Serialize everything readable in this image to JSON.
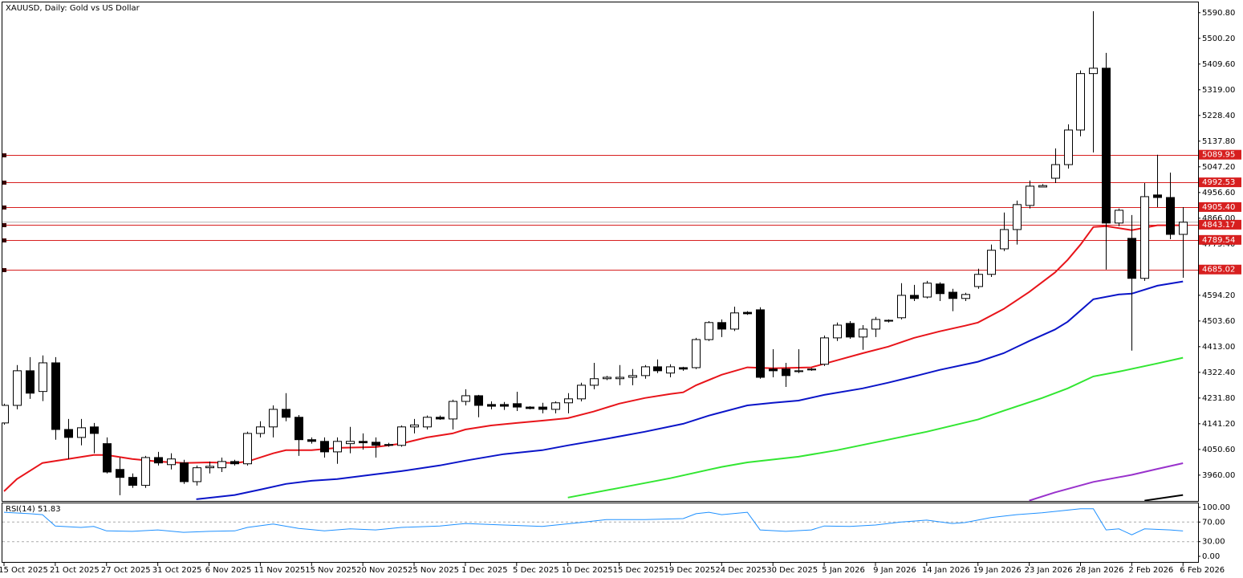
{
  "chart_data": [
    {
      "type": "candlestick",
      "title": "XAUUSD, Daily:  Gold vs US Dollar",
      "categories": [
        "15 Oct 2025",
        null,
        null,
        null,
        "21 Oct 2025",
        null,
        null,
        null,
        "27 Oct 2025",
        null,
        null,
        null,
        "31 Oct 2025",
        null,
        null,
        null,
        "6 Nov 2025",
        null,
        null,
        null,
        "11 Nov 2025",
        null,
        null,
        null,
        "15 Nov 2025",
        null,
        null,
        null,
        "20 Nov 2025",
        null,
        null,
        null,
        "25 Nov 2025",
        null,
        null,
        null,
        "1 Dec 2025",
        null,
        null,
        null,
        "5 Dec 2025",
        null,
        null,
        null,
        "10 Dec 2025",
        null,
        null,
        null,
        "15 Dec 2025",
        null,
        null,
        null,
        "19 Dec 2025",
        null,
        null,
        null,
        "24 Dec 2025",
        null,
        null,
        null,
        "30 Dec 2025",
        null,
        null,
        null,
        "5 Jan 2026",
        null,
        null,
        null,
        "9 Jan 2026",
        null,
        null,
        null,
        "14 Jan 2026",
        null,
        null,
        null,
        "19 Jan 2026",
        null,
        null,
        null,
        "23 Jan 2026",
        null,
        null,
        null,
        "28 Jan 2026",
        null,
        null,
        null,
        "2 Feb 2026",
        null,
        null,
        null,
        "6 Feb 2026"
      ],
      "open": [
        4144,
        4206,
        4328,
        4255,
        4356,
        4121,
        4093,
        4130,
        4071,
        3980,
        3952,
        3924,
        4022,
        3997,
        4003,
        3937,
        3986,
        3986,
        4008,
        4000,
        4107,
        4130,
        4192,
        4164,
        4085,
        4079,
        4042,
        4071,
        4079,
        4076,
        4068,
        4065,
        4130,
        4130,
        4164,
        4158,
        4220,
        4240,
        4209,
        4209,
        4212,
        4200,
        4200,
        4192,
        4215,
        4229,
        4277,
        4300,
        4300,
        4305,
        4311,
        4342,
        4320,
        4339,
        4339,
        4438,
        4498,
        4475,
        4534,
        4543,
        4334,
        4334,
        4325,
        4331,
        4351,
        4444,
        4495,
        4447,
        4475,
        4506,
        4515,
        4594,
        4588,
        4634,
        4605,
        4583,
        4625,
        4668,
        4758,
        4826,
        4911,
        4976,
        5007,
        5055,
        5177,
        5376,
        5395,
        4849,
        4795,
        4654,
        4948,
        4939,
        4809
      ],
      "high": [
        4212,
        4348,
        4376,
        4382,
        4376,
        4158,
        4158,
        4144,
        4093,
        4022,
        3966,
        4028,
        4042,
        4037,
        4014,
        3994,
        4008,
        4022,
        4014,
        4113,
        4150,
        4206,
        4249,
        4172,
        4093,
        4093,
        4093,
        4130,
        4107,
        4093,
        4074,
        4135,
        4158,
        4170,
        4170,
        4226,
        4263,
        4243,
        4220,
        4218,
        4254,
        4203,
        4215,
        4220,
        4249,
        4286,
        4356,
        4310,
        4348,
        4334,
        4348,
        4368,
        4351,
        4342,
        4444,
        4503,
        4509,
        4554,
        4538,
        4552,
        4404,
        4356,
        4404,
        4337,
        4452,
        4498,
        4503,
        4489,
        4518,
        4509,
        4637,
        4631,
        4645,
        4640,
        4617,
        4603,
        4688,
        4773,
        4886,
        4928,
        4999,
        4986,
        5112,
        5197,
        5387,
        5596,
        5449,
        4900,
        4877,
        4990,
        5090,
        5027,
        4905
      ],
      "low": [
        4138,
        4192,
        4229,
        4221,
        4085,
        4017,
        4065,
        4037,
        3966,
        3889,
        3915,
        3915,
        3994,
        3980,
        3929,
        3923,
        3966,
        3971,
        3994,
        3994,
        4093,
        4093,
        4150,
        4028,
        4071,
        4022,
        4000,
        4037,
        4050,
        4022,
        4060,
        4060,
        4107,
        4121,
        4155,
        4121,
        4206,
        4164,
        4192,
        4190,
        4186,
        4192,
        4178,
        4178,
        4178,
        4220,
        4263,
        4295,
        4277,
        4277,
        4300,
        4320,
        4305,
        4328,
        4334,
        4433,
        4447,
        4468,
        4525,
        4300,
        4305,
        4271,
        4320,
        4328,
        4345,
        4433,
        4441,
        4402,
        4447,
        4498,
        4509,
        4574,
        4583,
        4574,
        4538,
        4574,
        4617,
        4659,
        4750,
        4773,
        4900,
        4976,
        4990,
        5041,
        5155,
        5098,
        4685,
        4838,
        4399,
        4645,
        4905,
        4792,
        4656
      ],
      "close": [
        4206,
        4328,
        4249,
        4356,
        4121,
        4093,
        4127,
        4107,
        3971,
        3952,
        3924,
        4022,
        4003,
        4017,
        3937,
        3986,
        3991,
        4008,
        4000,
        4107,
        4130,
        4192,
        4164,
        4085,
        4079,
        4042,
        4079,
        4079,
        4074,
        4065,
        4065,
        4130,
        4137,
        4164,
        4158,
        4220,
        4240,
        4206,
        4203,
        4203,
        4200,
        4195,
        4192,
        4215,
        4229,
        4277,
        4300,
        4305,
        4305,
        4311,
        4342,
        4328,
        4342,
        4334,
        4438,
        4498,
        4475,
        4532,
        4529,
        4305,
        4328,
        4311,
        4328,
        4334,
        4444,
        4489,
        4447,
        4475,
        4509,
        4503,
        4594,
        4583,
        4637,
        4600,
        4583,
        4597,
        4668,
        4753,
        4826,
        4914,
        4979,
        4981,
        5055,
        5177,
        5376,
        5395,
        4849,
        4894,
        4654,
        4942,
        4939,
        4809,
        4852
      ],
      "up_color": "#ffffff",
      "down_color": "#000000",
      "ylim": [
        3869,
        5627
      ],
      "yticks": [
        {
          "value": 5590.8,
          "label": "5590.80"
        },
        {
          "value": 5500.2,
          "label": "5500.20"
        },
        {
          "value": 5409.6,
          "label": "5409.60"
        },
        {
          "value": 5319,
          "label": "5319.00"
        },
        {
          "value": 5228.4,
          "label": "5228.40"
        },
        {
          "value": 5137.8,
          "label": "5137.80"
        },
        {
          "value": 5047.2,
          "label": "5047.20"
        },
        {
          "value": 4956.6,
          "label": "4956.60"
        },
        {
          "value": 4866,
          "label": "4866.00"
        },
        {
          "value": 4775.4,
          "label": "4775.40"
        },
        {
          "value": 4594.2,
          "label": "4594.20"
        },
        {
          "value": 4503.6,
          "label": "4503.60"
        },
        {
          "value": 4413,
          "label": "4413.00"
        },
        {
          "value": 4322.4,
          "label": "4322.40"
        },
        {
          "value": 4231.8,
          "label": "4231.80"
        },
        {
          "value": 4141.2,
          "label": "4141.20"
        },
        {
          "value": 4050.6,
          "label": "4050.60"
        },
        {
          "value": 3960,
          "label": "3960.00"
        }
      ],
      "lines": [
        {
          "color": "#e8141a",
          "x": [
            0,
            1,
            3,
            5,
            7,
            8,
            10,
            12,
            14,
            16,
            18,
            19,
            21,
            22,
            24,
            26,
            29,
            31,
            33,
            35,
            36,
            38,
            40,
            42,
            44,
            46,
            48,
            50,
            52,
            53,
            54,
            56,
            58,
            60,
            63,
            65,
            67,
            69,
            71,
            73,
            75,
            76,
            78,
            80,
            82,
            83,
            84,
            85,
            86,
            88,
            90,
            92
          ],
          "values": [
            3903,
            3946,
            4003,
            4017,
            4031,
            4031,
            4017,
            4008,
            4003,
            4005,
            4003,
            4008,
            4037,
            4048,
            4048,
            4056,
            4059,
            4071,
            4093,
            4107,
            4121,
            4135,
            4144,
            4152,
            4161,
            4184,
            4212,
            4232,
            4246,
            4252,
            4277,
            4314,
            4340,
            4337,
            4340,
            4365,
            4390,
            4413,
            4444,
            4467,
            4487,
            4498,
            4546,
            4606,
            4674,
            4719,
            4773,
            4835,
            4838,
            4824,
            4841,
            4841
          ]
        },
        {
          "color": "#0a14c8",
          "x": [
            15,
            18,
            20,
            22,
            24,
            26,
            29,
            31,
            34,
            36,
            39,
            42,
            44,
            47,
            50,
            53,
            55,
            58,
            60,
            62,
            64,
            67,
            69,
            71,
            73,
            76,
            78,
            80,
            82,
            83,
            85,
            87,
            88,
            90,
            92
          ],
          "values": [
            3875,
            3890,
            3909,
            3929,
            3940,
            3946,
            3963,
            3974,
            3994,
            4011,
            4034,
            4048,
            4065,
            4088,
            4113,
            4141,
            4170,
            4206,
            4215,
            4223,
            4243,
            4266,
            4286,
            4308,
            4331,
            4360,
            4390,
            4433,
            4473,
            4501,
            4580,
            4597,
            4600,
            4628,
            4643
          ]
        },
        {
          "color": "#32e632",
          "x": [
            44,
            48,
            52,
            56,
            58,
            62,
            65,
            69,
            72,
            76,
            78,
            81,
            83,
            85,
            87,
            90,
            92
          ],
          "values": [
            3881,
            3915,
            3949,
            3989,
            4005,
            4025,
            4048,
            4085,
            4113,
            4156,
            4187,
            4232,
            4266,
            4308,
            4325,
            4354,
            4374
          ]
        },
        {
          "color": "#9932cc",
          "x": [
            80,
            82,
            85,
            88,
            90,
            92
          ],
          "values": [
            3870,
            3899,
            3936,
            3961,
            3982,
            4002
          ]
        },
        {
          "color": "#000000",
          "x": [
            89,
            92
          ],
          "values": [
            3870,
            3890
          ]
        }
      ],
      "levels": {
        "color": "#d71f1f",
        "values": [
          5089.95,
          4992.53,
          4905.4,
          4843.17,
          4789.54,
          4685.02
        ],
        "value_labels": [
          "5089.95",
          "4992.53",
          "4905.40",
          "4843.17",
          "4789.54",
          "4685.02"
        ]
      }
    },
    {
      "type": "line",
      "title": "RSI(14) 51.83",
      "color": "#1e90ff",
      "x": [
        0,
        2,
        3,
        4,
        6,
        7,
        8,
        10,
        12,
        14,
        16,
        18,
        19,
        21,
        23,
        25,
        27,
        29,
        31,
        34,
        36,
        39,
        42,
        45,
        47,
        50,
        53,
        54,
        55,
        56,
        58,
        59,
        61,
        63,
        64,
        66,
        68,
        70,
        72,
        74,
        75,
        77,
        79,
        81,
        84,
        85,
        86,
        87,
        88,
        89,
        91,
        92
      ],
      "values": [
        90,
        87,
        85,
        62,
        59,
        61,
        52,
        51,
        54,
        49,
        51,
        52,
        59,
        66,
        57,
        52,
        56,
        54,
        59,
        62,
        67,
        64,
        61,
        69,
        75,
        75,
        77,
        87,
        90,
        85,
        90,
        54,
        51,
        54,
        62,
        61,
        64,
        70,
        74,
        67,
        69,
        79,
        85,
        89,
        97,
        97,
        54,
        56,
        44,
        56,
        54,
        51.83
      ],
      "ylim": [
        -11.5,
        108.2
      ],
      "yticks": [
        {
          "value": 100,
          "label": "100.00"
        },
        {
          "value": 70,
          "label": "70.00"
        },
        {
          "value": 30,
          "label": "30.00"
        },
        {
          "value": 0,
          "label": "0.00"
        }
      ]
    }
  ]
}
